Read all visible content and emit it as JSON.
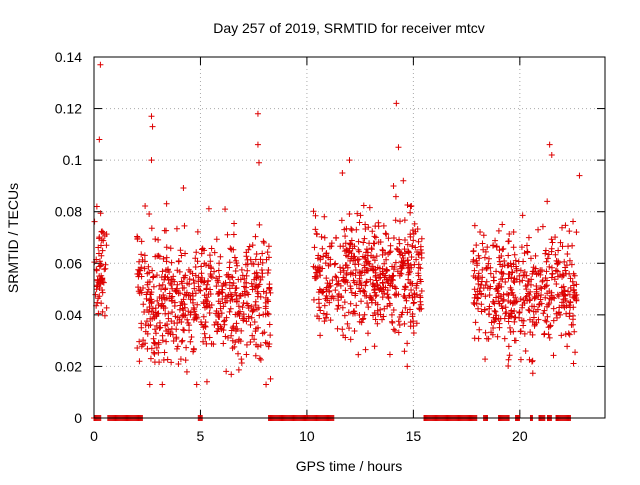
{
  "chart_data": {
    "type": "scatter",
    "title": "Day 257 of 2019, SRMTID for receiver mtcv",
    "xlabel": "GPS time / hours",
    "ylabel": "SRMTID / TECUs",
    "xlim": [
      0,
      24
    ],
    "ylim": [
      0,
      0.14
    ],
    "xticks": [
      0,
      5,
      10,
      15,
      20
    ],
    "yticks": [
      0,
      0.02,
      0.04,
      0.06,
      0.08,
      0.1,
      0.12,
      0.14
    ],
    "ytick_labels": [
      "0",
      "0.02",
      "0.04",
      "0.06",
      "0.08",
      "0.1",
      "0.12",
      "0.14"
    ],
    "grid": true,
    "legend": "none",
    "marker": "+",
    "series_color": "#dd0000",
    "seed": 2019257,
    "clusters": [
      {
        "x_start": 0.0,
        "x_end": 0.6,
        "count": 60,
        "y_center": 0.054,
        "y_spread": 0.012,
        "y_min": 0.03,
        "y_max": 0.082
      },
      {
        "x_start": 2.0,
        "x_end": 8.3,
        "count": 620,
        "y_center": 0.046,
        "y_spread": 0.013,
        "y_min": 0.013,
        "y_max": 0.09
      },
      {
        "x_start": 10.3,
        "x_end": 15.4,
        "count": 520,
        "y_center": 0.056,
        "y_spread": 0.012,
        "y_min": 0.02,
        "y_max": 0.095
      },
      {
        "x_start": 17.8,
        "x_end": 22.7,
        "count": 460,
        "y_center": 0.048,
        "y_spread": 0.012,
        "y_min": 0.014,
        "y_max": 0.09
      }
    ],
    "outliers": [
      {
        "x": 0.3,
        "y": 0.137
      },
      {
        "x": 0.25,
        "y": 0.108
      },
      {
        "x": 2.7,
        "y": 0.117
      },
      {
        "x": 2.75,
        "y": 0.113
      },
      {
        "x": 2.7,
        "y": 0.1
      },
      {
        "x": 7.7,
        "y": 0.118
      },
      {
        "x": 7.7,
        "y": 0.106
      },
      {
        "x": 7.75,
        "y": 0.099
      },
      {
        "x": 14.2,
        "y": 0.122
      },
      {
        "x": 14.3,
        "y": 0.105
      },
      {
        "x": 12.0,
        "y": 0.1
      },
      {
        "x": 21.4,
        "y": 0.106
      },
      {
        "x": 21.5,
        "y": 0.102
      },
      {
        "x": 22.8,
        "y": 0.094
      }
    ],
    "zero_ranges": [
      [
        0.0,
        0.35
      ],
      [
        0.65,
        2.3
      ],
      [
        4.9,
        5.1
      ],
      [
        8.2,
        11.3
      ],
      [
        15.5,
        18.0
      ],
      [
        18.3,
        18.5
      ],
      [
        19.0,
        19.5
      ],
      [
        19.8,
        20.0
      ],
      [
        20.5,
        20.6
      ],
      [
        20.9,
        21.2
      ],
      [
        21.3,
        21.5
      ],
      [
        21.7,
        22.4
      ]
    ]
  }
}
